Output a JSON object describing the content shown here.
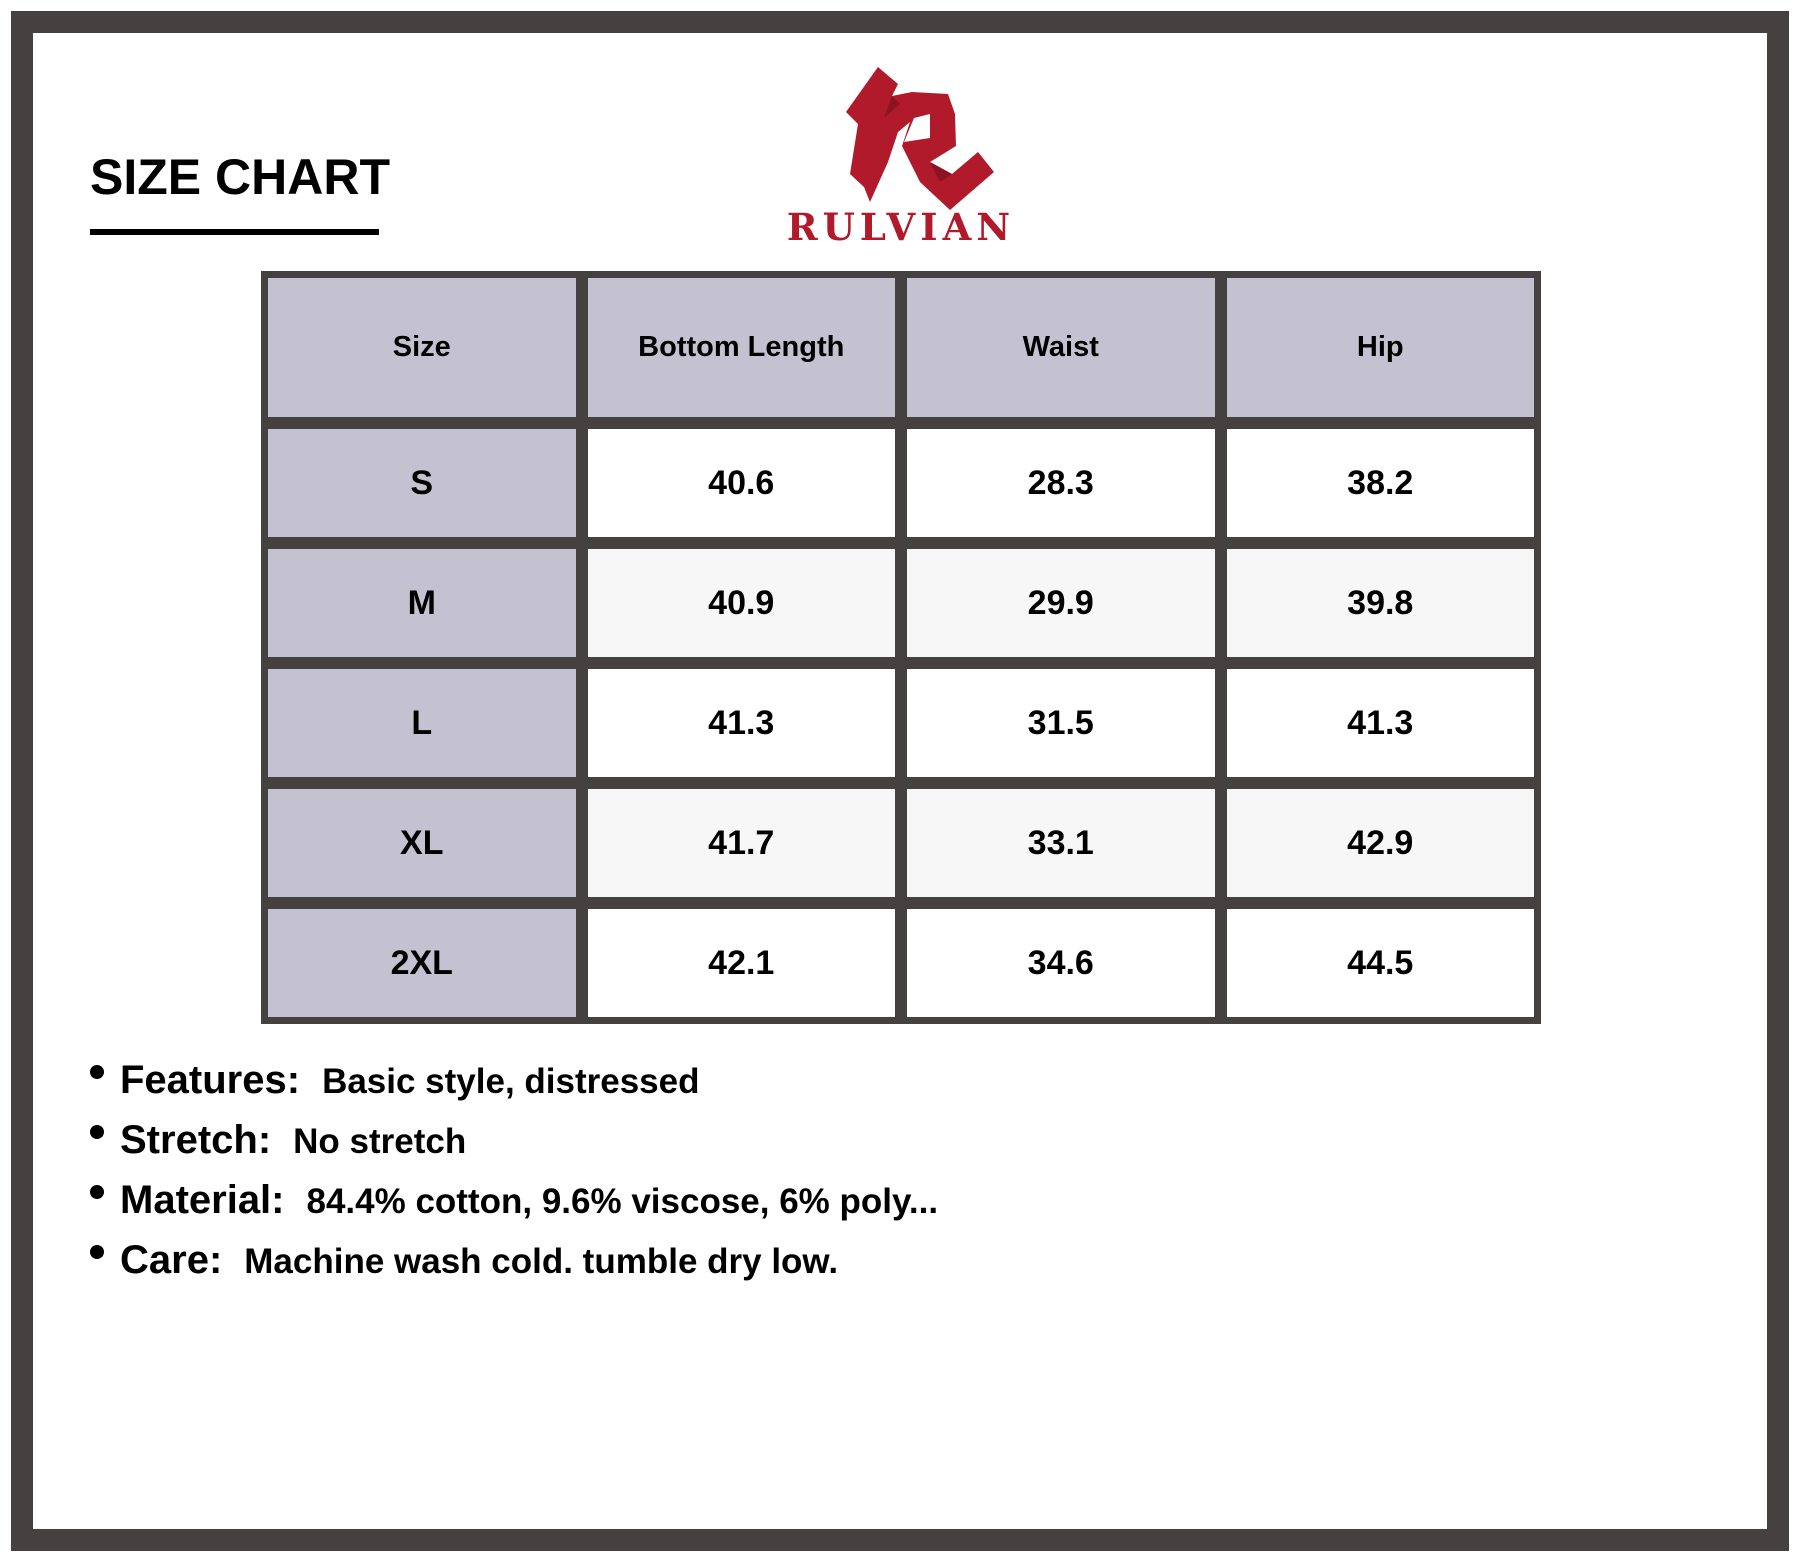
{
  "title": "SIZE CHART",
  "brand": {
    "name": "RULVIAN",
    "color": "#b11a2b",
    "logo": "stylized-R-logo"
  },
  "table": {
    "headers": [
      "Size",
      "Bottom Length",
      "Waist",
      "Hip"
    ],
    "rows": [
      [
        "S",
        "40.6",
        "28.3",
        "38.2"
      ],
      [
        "M",
        "40.9",
        "29.9",
        "39.8"
      ],
      [
        "L",
        "41.3",
        "31.5",
        "41.3"
      ],
      [
        "XL",
        "41.7",
        "33.1",
        "42.9"
      ],
      [
        "2XL",
        "42.1",
        "34.6",
        "44.5"
      ]
    ]
  },
  "details": [
    {
      "label": "Features:",
      "value": "Basic style, distressed"
    },
    {
      "label": "Stretch:",
      "value": "No stretch"
    },
    {
      "label": "Material:",
      "value": "84.4% cotton, 9.6% viscose, 6% poly..."
    },
    {
      "label": "Care:",
      "value": "Machine wash cold. tumble dry low."
    }
  ],
  "colors": {
    "frame": "#464141",
    "header": "#c4c2d0",
    "accent": "#b11a2b"
  }
}
